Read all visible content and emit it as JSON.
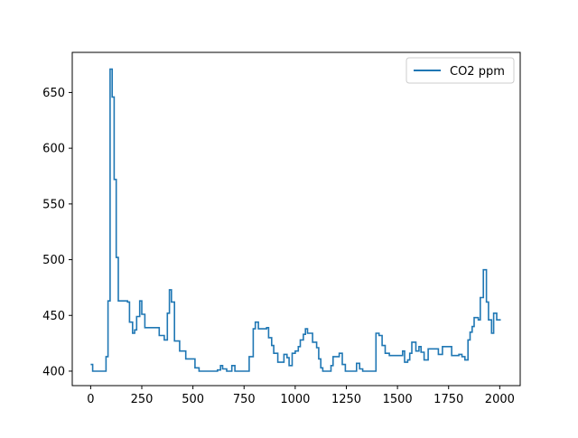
{
  "chart_data": {
    "type": "line",
    "title": "",
    "xlabel": "",
    "ylabel": "",
    "xlim": [
      -90,
      2100
    ],
    "ylim": [
      387,
      686
    ],
    "xticks": [
      0,
      250,
      500,
      750,
      1000,
      1250,
      1500,
      1750,
      2000
    ],
    "yticks": [
      400,
      450,
      500,
      550,
      600,
      650
    ],
    "grid": false,
    "legend": "top-right",
    "step": "post",
    "series": [
      {
        "name": "CO2 ppm",
        "color": "#1f77b4",
        "points": [
          [
            0,
            406
          ],
          [
            10,
            400
          ],
          [
            70,
            400
          ],
          [
            75,
            413
          ],
          [
            85,
            463
          ],
          [
            90,
            463
          ],
          [
            95,
            671
          ],
          [
            105,
            646
          ],
          [
            115,
            572
          ],
          [
            125,
            502
          ],
          [
            135,
            463
          ],
          [
            180,
            462
          ],
          [
            190,
            444
          ],
          [
            205,
            434
          ],
          [
            215,
            437
          ],
          [
            225,
            449
          ],
          [
            240,
            463
          ],
          [
            250,
            451
          ],
          [
            265,
            439
          ],
          [
            310,
            439
          ],
          [
            335,
            432
          ],
          [
            360,
            428
          ],
          [
            375,
            452
          ],
          [
            385,
            473
          ],
          [
            395,
            462
          ],
          [
            410,
            427
          ],
          [
            435,
            418
          ],
          [
            465,
            411
          ],
          [
            510,
            403
          ],
          [
            530,
            400
          ],
          [
            620,
            401
          ],
          [
            635,
            405
          ],
          [
            645,
            402
          ],
          [
            665,
            400
          ],
          [
            690,
            405
          ],
          [
            705,
            400
          ],
          [
            765,
            400
          ],
          [
            775,
            413
          ],
          [
            795,
            438
          ],
          [
            805,
            444
          ],
          [
            820,
            438
          ],
          [
            860,
            439
          ],
          [
            870,
            430
          ],
          [
            885,
            423
          ],
          [
            895,
            416
          ],
          [
            915,
            408
          ],
          [
            935,
            408
          ],
          [
            945,
            415
          ],
          [
            960,
            412
          ],
          [
            970,
            405
          ],
          [
            985,
            416
          ],
          [
            1000,
            418
          ],
          [
            1015,
            422
          ],
          [
            1025,
            428
          ],
          [
            1040,
            433
          ],
          [
            1050,
            438
          ],
          [
            1060,
            434
          ],
          [
            1085,
            426
          ],
          [
            1105,
            421
          ],
          [
            1115,
            411
          ],
          [
            1125,
            403
          ],
          [
            1135,
            400
          ],
          [
            1165,
            400
          ],
          [
            1175,
            405
          ],
          [
            1185,
            413
          ],
          [
            1200,
            413
          ],
          [
            1215,
            416
          ],
          [
            1230,
            406
          ],
          [
            1245,
            400
          ],
          [
            1265,
            400
          ],
          [
            1280,
            400
          ],
          [
            1300,
            407
          ],
          [
            1315,
            402
          ],
          [
            1330,
            400
          ],
          [
            1390,
            400
          ],
          [
            1395,
            434
          ],
          [
            1410,
            432
          ],
          [
            1425,
            423
          ],
          [
            1440,
            416
          ],
          [
            1460,
            414
          ],
          [
            1500,
            414
          ],
          [
            1525,
            418
          ],
          [
            1535,
            408
          ],
          [
            1550,
            410
          ],
          [
            1560,
            416
          ],
          [
            1570,
            426
          ],
          [
            1590,
            418
          ],
          [
            1605,
            422
          ],
          [
            1615,
            417
          ],
          [
            1630,
            410
          ],
          [
            1650,
            420
          ],
          [
            1700,
            415
          ],
          [
            1720,
            422
          ],
          [
            1755,
            422
          ],
          [
            1765,
            414
          ],
          [
            1800,
            415
          ],
          [
            1815,
            413
          ],
          [
            1830,
            410
          ],
          [
            1845,
            428
          ],
          [
            1855,
            435
          ],
          [
            1865,
            440
          ],
          [
            1875,
            448
          ],
          [
            1895,
            446
          ],
          [
            1905,
            466
          ],
          [
            1920,
            491
          ],
          [
            1935,
            462
          ],
          [
            1945,
            446
          ],
          [
            1960,
            434
          ],
          [
            1970,
            452
          ],
          [
            1985,
            446
          ],
          [
            2005,
            446
          ]
        ]
      }
    ]
  }
}
